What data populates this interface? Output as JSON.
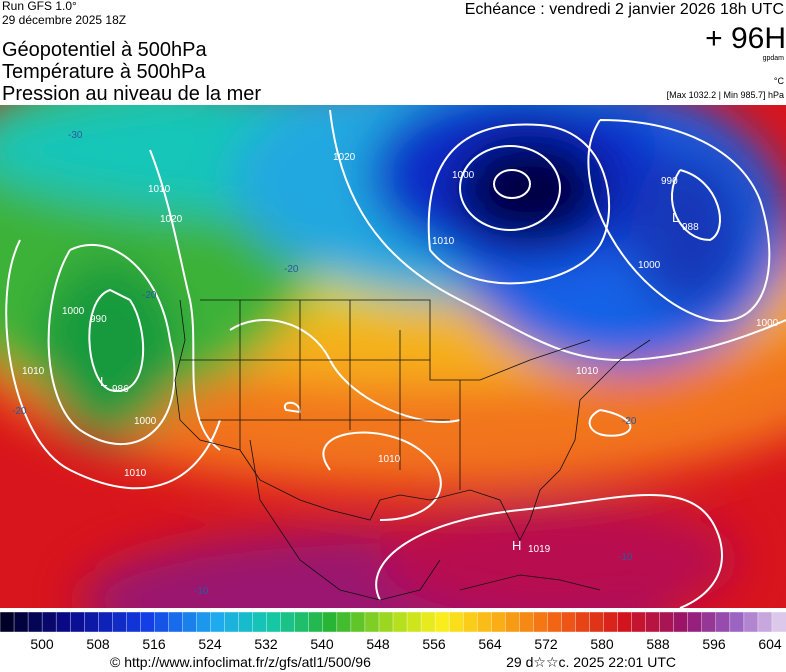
{
  "header": {
    "run": "Run GFS 1.0°",
    "date": "29 décembre 2025 18Z",
    "titles": [
      "Géopotentiel à 500hPa",
      "Température à 500hPa",
      "Pression au niveau de la mer"
    ],
    "forecast": "Echéance : vendredi 2 janvier 2026 18h UTC",
    "lead": "+ 96H",
    "unit_geopotential": "gpdam",
    "unit_temperature": "°C",
    "pressure_range": "[Max 1032.2 | Min 985.7] hPa"
  },
  "map": {
    "contour_labels": [
      "1000",
      "1010",
      "990",
      "L",
      "988",
      "1000",
      "1000",
      "1020",
      "1010",
      "1020",
      "1000",
      "990",
      "L",
      "986",
      "1010",
      "1000",
      "1010",
      "1010",
      "1010",
      "H",
      "1019",
      "-30",
      "-20",
      "-20",
      "-20",
      "-10",
      "-10",
      "-20"
    ]
  },
  "colorbar": {
    "ticks": [
      500,
      508,
      516,
      524,
      532,
      540,
      548,
      556,
      564,
      572,
      580,
      588,
      596,
      604
    ]
  },
  "footer": {
    "source": "© http://www.infoclimat.fr/z/gfs/atl1/500/96",
    "generated": "29 d☆☆c. 2025 22:01 UTC"
  }
}
